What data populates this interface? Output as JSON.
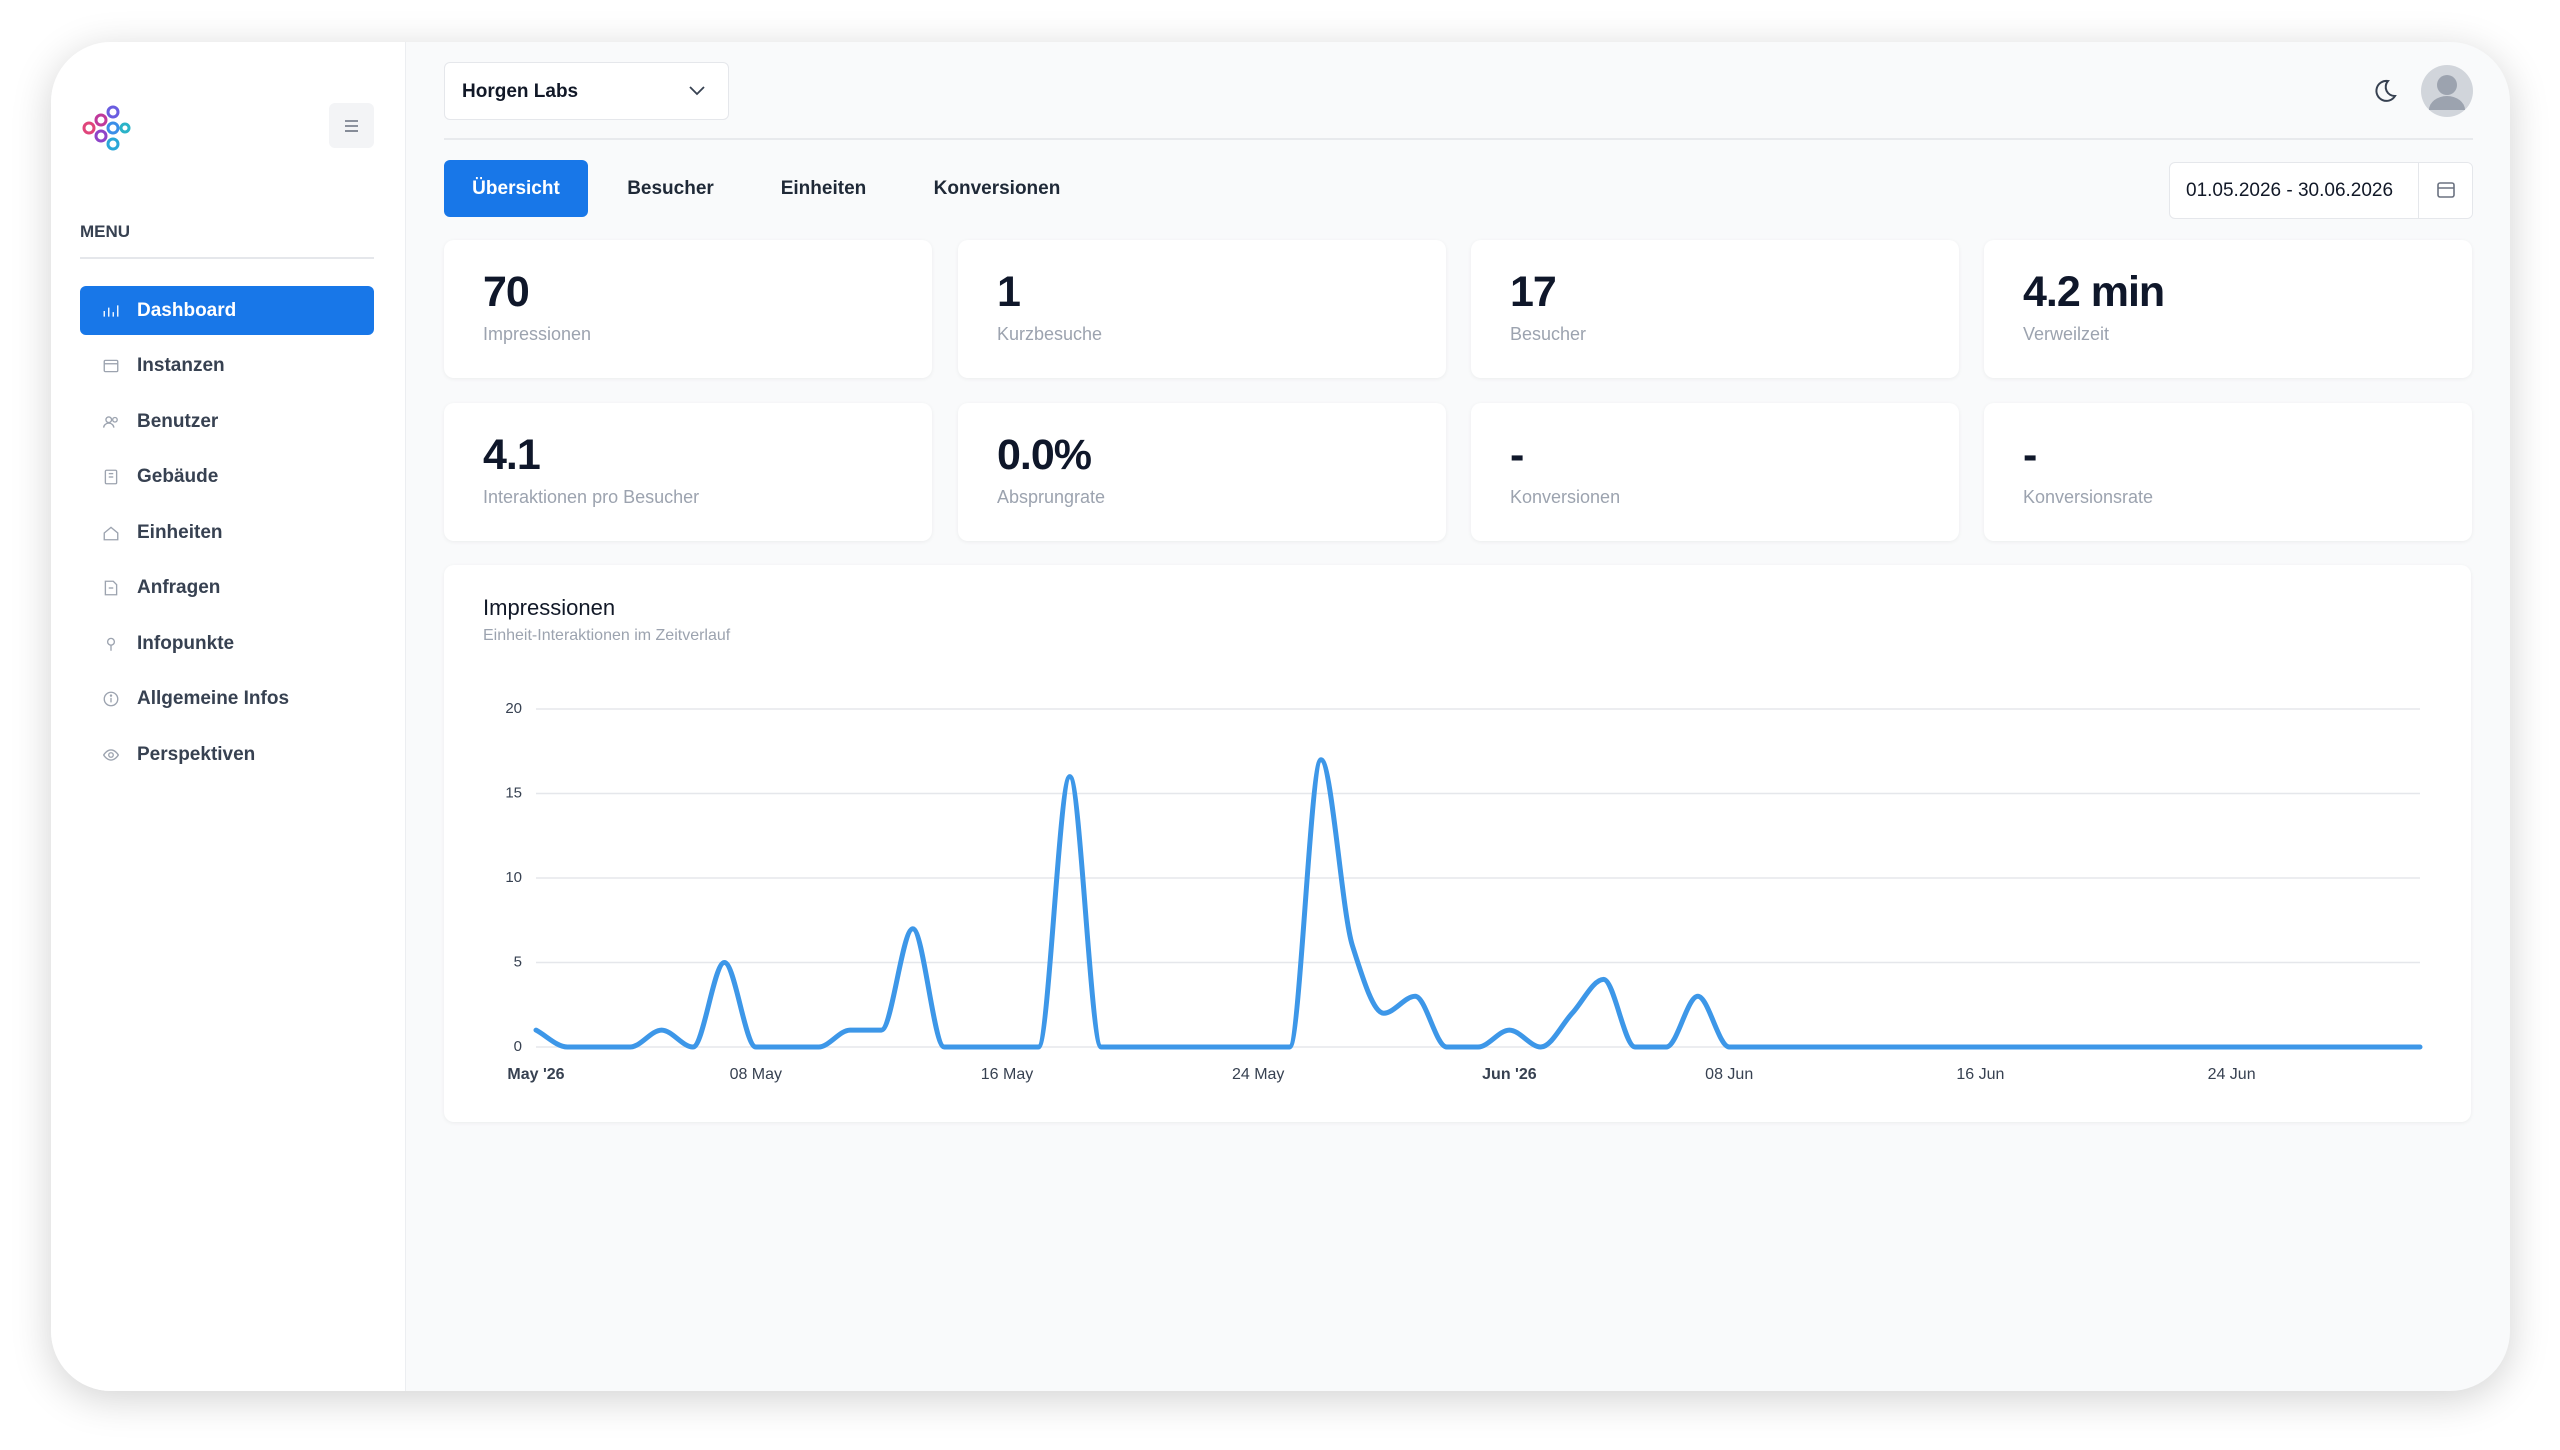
{
  "sidebar": {
    "menu_label": "MENU",
    "items": [
      "Dashboard",
      "Instanzen",
      "Benutzer",
      "Gebäude",
      "Einheiten",
      "Anfragen",
      "Infopunkte",
      "Allgemeine Infos",
      "Perspektiven"
    ]
  },
  "header": {
    "organization": "Horgen Labs"
  },
  "tabs": [
    "Übersicht",
    "Besucher",
    "Einheiten",
    "Konversionen"
  ],
  "date_range": "01.05.2026 - 30.06.2026",
  "kpis": [
    {
      "value": "70",
      "label": "Impressionen"
    },
    {
      "value": "1",
      "label": "Kurzbesuche"
    },
    {
      "value": "17",
      "label": "Besucher"
    },
    {
      "value": "4.2 min",
      "label": "Verweilzeit"
    },
    {
      "value": "4.1",
      "label": "Interaktionen pro Besucher"
    },
    {
      "value": "0.0%",
      "label": "Absprungrate"
    },
    {
      "value": "-",
      "label": "Konversionen"
    },
    {
      "value": "-",
      "label": "Konversionsrate"
    }
  ],
  "chart_data": {
    "type": "line",
    "title": "Impressionen",
    "subtitle": "Einheit-Interaktionen im Zeitverlauf",
    "color": "#3d97e8",
    "grid": true,
    "x": [
      "2026-05-01",
      "2026-05-02",
      "2026-05-03",
      "2026-05-04",
      "2026-05-05",
      "2026-05-06",
      "2026-05-07",
      "2026-05-08",
      "2026-05-09",
      "2026-05-10",
      "2026-05-11",
      "2026-05-12",
      "2026-05-13",
      "2026-05-14",
      "2026-05-15",
      "2026-05-16",
      "2026-05-17",
      "2026-05-18",
      "2026-05-19",
      "2026-05-20",
      "2026-05-21",
      "2026-05-22",
      "2026-05-23",
      "2026-05-24",
      "2026-05-25",
      "2026-05-26",
      "2026-05-27",
      "2026-05-28",
      "2026-05-29",
      "2026-05-30",
      "2026-05-31",
      "2026-06-01",
      "2026-06-02",
      "2026-06-03",
      "2026-06-04",
      "2026-06-05",
      "2026-06-06",
      "2026-06-07",
      "2026-06-08",
      "2026-06-09",
      "2026-06-10",
      "2026-06-11",
      "2026-06-12",
      "2026-06-13",
      "2026-06-14",
      "2026-06-15",
      "2026-06-16",
      "2026-06-17",
      "2026-06-18",
      "2026-06-19",
      "2026-06-20",
      "2026-06-21",
      "2026-06-22",
      "2026-06-23",
      "2026-06-24",
      "2026-06-25",
      "2026-06-26",
      "2026-06-27",
      "2026-06-28",
      "2026-06-29",
      "2026-06-30"
    ],
    "values": [
      1,
      0,
      0,
      0,
      1,
      0,
      5,
      0,
      0,
      0,
      1,
      1,
      7,
      0,
      0,
      0,
      0,
      16,
      0,
      0,
      0,
      0,
      0,
      0,
      0,
      17,
      6,
      2,
      3,
      0,
      0,
      1,
      0,
      2,
      4,
      0,
      0,
      3,
      0,
      0,
      0,
      0,
      0,
      0,
      0,
      0,
      0,
      0,
      0,
      0,
      0,
      0,
      0,
      0,
      0,
      0,
      0,
      0,
      0,
      0,
      0
    ],
    "xlim": [
      "2026-05-01",
      "2026-06-30"
    ],
    "xticks": [
      {
        "value": "2026-05-01",
        "label": "May '26"
      },
      {
        "value": "2026-05-08",
        "label": "08 May"
      },
      {
        "value": "2026-05-16",
        "label": "16 May"
      },
      {
        "value": "2026-05-24",
        "label": "24 May"
      },
      {
        "value": "2026-06-01",
        "label": "Jun '26"
      },
      {
        "value": "2026-06-08",
        "label": "08 Jun"
      },
      {
        "value": "2026-06-16",
        "label": "16 Jun"
      },
      {
        "value": "2026-06-24",
        "label": "24 Jun"
      }
    ],
    "ylim": [
      0,
      20
    ],
    "yticks": [
      0,
      5,
      10,
      15,
      20
    ]
  }
}
